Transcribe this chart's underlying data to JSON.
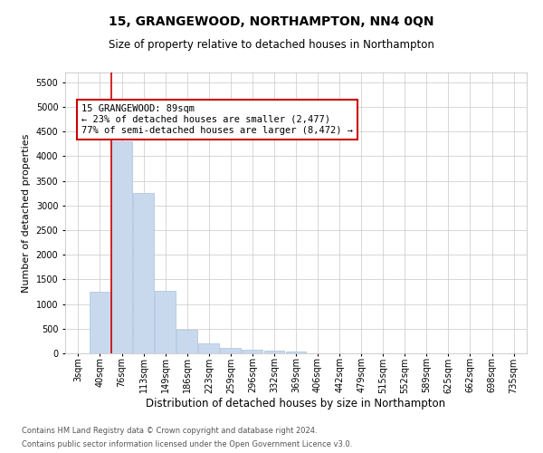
{
  "title": "15, GRANGEWOOD, NORTHAMPTON, NN4 0QN",
  "subtitle": "Size of property relative to detached houses in Northampton",
  "xlabel": "Distribution of detached houses by size in Northampton",
  "ylabel": "Number of detached properties",
  "footer_line1": "Contains HM Land Registry data © Crown copyright and database right 2024.",
  "footer_line2": "Contains public sector information licensed under the Open Government Licence v3.0.",
  "annotation_title": "15 GRANGEWOOD: 89sqm",
  "annotation_line1": "← 23% of detached houses are smaller (2,477)",
  "annotation_line2": "77% of semi-detached houses are larger (8,472) →",
  "bar_color": "#c8d9ee",
  "bar_edge_color": "#a8c0de",
  "red_line_color": "#cc0000",
  "annotation_box_color": "#cc0000",
  "categories": [
    "3sqm",
    "40sqm",
    "76sqm",
    "113sqm",
    "149sqm",
    "186sqm",
    "223sqm",
    "259sqm",
    "296sqm",
    "332sqm",
    "369sqm",
    "406sqm",
    "442sqm",
    "479sqm",
    "515sqm",
    "552sqm",
    "589sqm",
    "625sqm",
    "662sqm",
    "698sqm",
    "735sqm"
  ],
  "values": [
    0,
    1250,
    4300,
    3250,
    1270,
    480,
    210,
    115,
    80,
    55,
    40,
    0,
    0,
    0,
    0,
    0,
    0,
    0,
    0,
    0,
    0
  ],
  "ylim": [
    0,
    5700
  ],
  "yticks": [
    0,
    500,
    1000,
    1500,
    2000,
    2500,
    3000,
    3500,
    4000,
    4500,
    5000,
    5500
  ],
  "red_line_x": 1.5,
  "grid_color": "#c8c8c8",
  "background_color": "#ffffff",
  "title_fontsize": 10,
  "subtitle_fontsize": 8.5,
  "ylabel_fontsize": 8,
  "xlabel_fontsize": 8.5,
  "tick_fontsize": 7,
  "annotation_fontsize": 7.5,
  "footer_fontsize": 6
}
